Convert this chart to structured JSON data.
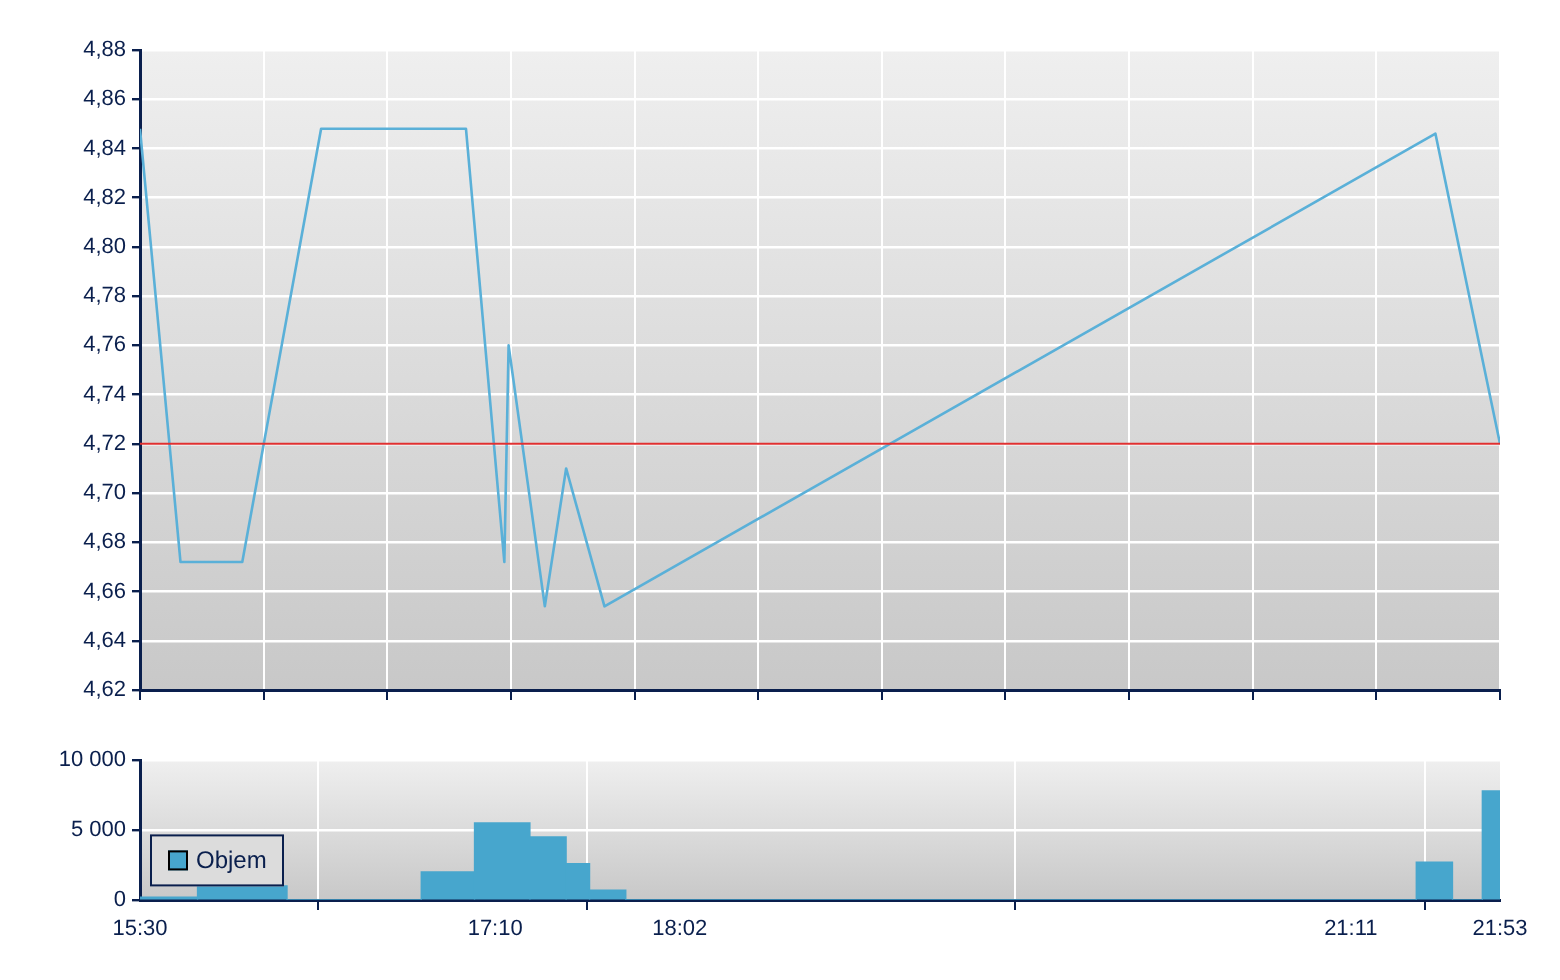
{
  "chart_data": [
    {
      "type": "line",
      "x": [
        15.5,
        15.69,
        15.98,
        16.35,
        17.03,
        17.21,
        17.23,
        17.4,
        17.5,
        17.68,
        21.58,
        21.883
      ],
      "series": [
        {
          "color": "#5ab0d8",
          "values": [
            4.848,
            4.672,
            4.672,
            4.848,
            4.848,
            4.672,
            4.76,
            4.654,
            4.71,
            4.654,
            4.846,
            4.72
          ]
        }
      ],
      "xlim": [
        15.5,
        21.883
      ],
      "xticks": [
        {
          "value": 15.5,
          "label": null
        },
        {
          "value": 16.08,
          "label": null
        },
        {
          "value": 16.661,
          "label": null
        },
        {
          "value": 17.241,
          "label": null
        },
        {
          "value": 17.821,
          "label": null
        },
        {
          "value": 18.402,
          "label": null
        },
        {
          "value": 18.982,
          "label": null
        },
        {
          "value": 19.562,
          "label": null
        },
        {
          "value": 20.142,
          "label": null
        },
        {
          "value": 20.723,
          "label": null
        },
        {
          "value": 21.303,
          "label": null
        },
        {
          "value": 21.883,
          "label": null
        }
      ],
      "ylim": [
        4.62,
        4.88
      ],
      "yticks": [
        {
          "value": 4.62,
          "label": "4,62"
        },
        {
          "value": 4.64,
          "label": "4,64"
        },
        {
          "value": 4.66,
          "label": "4,66"
        },
        {
          "value": 4.68,
          "label": "4,68"
        },
        {
          "value": 4.7,
          "label": "4,70"
        },
        {
          "value": 4.72,
          "label": "4,72"
        },
        {
          "value": 4.74,
          "label": "4,74"
        },
        {
          "value": 4.76,
          "label": "4,76"
        },
        {
          "value": 4.78,
          "label": "4,78"
        },
        {
          "value": 4.8,
          "label": "4,80"
        },
        {
          "value": 4.82,
          "label": "4,82"
        },
        {
          "value": 4.84,
          "label": "4,84"
        },
        {
          "value": 4.86,
          "label": "4,86"
        },
        {
          "value": 4.88,
          "label": "4,88"
        }
      ],
      "ref_lines": [
        {
          "axis": "y",
          "value": 4.72,
          "color": "#e03030"
        }
      ],
      "grid": true,
      "tick_labels": "y"
    },
    {
      "type": "histogram",
      "bins": [
        15.5,
        15.77,
        16.19,
        16.82,
        17.07,
        17.33,
        17.5,
        17.61,
        17.78,
        21.49,
        21.66,
        21.8,
        21.883
      ],
      "series": [
        {
          "name": "Objem",
          "color": "#47a6cd",
          "values": [
            200,
            1000,
            0,
            2000,
            5500,
            4500,
            2600,
            700,
            0,
            2700,
            0,
            7800
          ]
        }
      ],
      "xlim": [
        15.5,
        21.883
      ],
      "xticks": [
        {
          "value": 15.5,
          "label": "15:30"
        },
        {
          "value": 17.167,
          "label": "17:10"
        },
        {
          "value": 18.033,
          "label": "18:02"
        },
        {
          "value": 21.183,
          "label": "21:11"
        },
        {
          "value": 21.883,
          "label": "21:53"
        }
      ],
      "ylim": [
        0,
        10000
      ],
      "yticks": [
        {
          "value": 0,
          "label": "0"
        },
        {
          "value": 5000,
          "label": "5 000"
        },
        {
          "value": 10000,
          "label": "10 000"
        }
      ],
      "grid": true,
      "legend": "left"
    }
  ]
}
